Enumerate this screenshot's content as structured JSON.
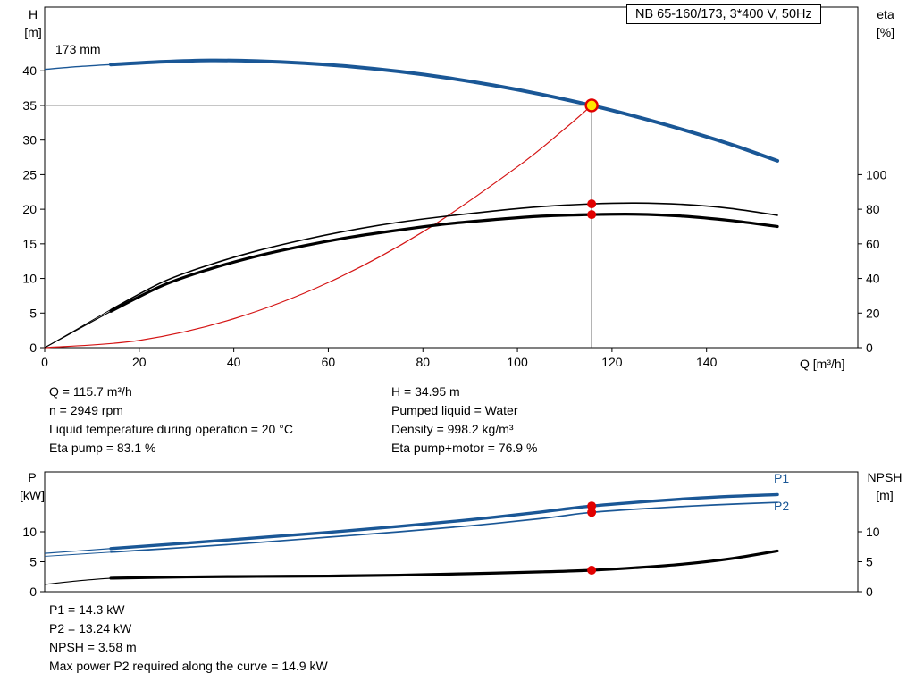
{
  "header": {
    "title_box": "NB 65-160/173, 3*400 V, 50Hz"
  },
  "top_chart": {
    "impeller_label": "173 mm",
    "left_axis_title": [
      "H",
      "[m]"
    ],
    "right_axis_title": [
      "eta",
      "[%]"
    ],
    "x_axis_title": "Q [m³/h]"
  },
  "bottom_chart": {
    "left_axis_title": [
      "P",
      "[kW]"
    ],
    "right_axis_title": [
      "NPSH",
      "[m]"
    ],
    "p1_label": "P1",
    "p2_label": "P2"
  },
  "results": {
    "left": [
      "Q = 115.7 m³/h",
      "n = 2949 rpm",
      "Liquid temperature during operation = 20 °C",
      "Eta pump = 83.1 %"
    ],
    "right": [
      "H = 34.95 m",
      "Pumped liquid = Water",
      "Density = 998.2 kg/m³",
      "Eta pump+motor = 76.9 %"
    ],
    "bottom": [
      "P1 = 14.3 kW",
      "P2 = 13.24 kW",
      "NPSH = 3.58 m",
      "Max power P2 required along the curve = 14.9 kW"
    ]
  },
  "colors": {
    "curve_blue": "#1a5796",
    "curve_red": "#d41414",
    "curve_black": "#000000",
    "duty_fill": "#ffe600",
    "duty_ring": "#e10000",
    "ref_gray": "#8c8c8c",
    "ref_dark": "#333333"
  },
  "chart_data": [
    {
      "type": "line",
      "name": "qh-eta-chart",
      "title": "NB 65-160/173, 3*400 V, 50Hz",
      "xlabel": "Q [m³/h]",
      "ylabel_left": "H [m]",
      "ylabel_right": "eta [%]",
      "x": {
        "min": 0,
        "max": 172,
        "ticks": [
          0,
          20,
          40,
          60,
          80,
          100,
          120,
          140
        ]
      },
      "y_left": {
        "min": 0,
        "max": 49.2,
        "ticks": [
          0,
          5,
          10,
          15,
          20,
          25,
          30,
          35,
          40
        ]
      },
      "y_right": {
        "min": 0,
        "max": 196.8,
        "ticks": [
          0,
          20,
          40,
          60,
          80,
          100
        ]
      },
      "ref_lines": {
        "duty_q": 115.7,
        "duty_h": 35
      },
      "series": [
        {
          "name": "head-curve",
          "axis": "left",
          "color": "blue",
          "width": 4,
          "lead": [
            [
              0,
              40.2
            ],
            [
              7,
              40.6
            ],
            [
              14,
              40.9
            ]
          ],
          "points": [
            [
              14,
              40.9
            ],
            [
              25,
              41.3
            ],
            [
              35,
              41.5
            ],
            [
              45,
              41.4
            ],
            [
              55,
              41.1
            ],
            [
              65,
              40.6
            ],
            [
              75,
              39.9
            ],
            [
              85,
              39.0
            ],
            [
              95,
              37.9
            ],
            [
              105,
              36.6
            ],
            [
              115.7,
              35.0
            ],
            [
              125,
              33.4
            ],
            [
              135,
              31.5
            ],
            [
              145,
              29.4
            ],
            [
              155,
              27.0
            ]
          ]
        },
        {
          "name": "system-curve",
          "axis": "left",
          "color": "red",
          "width": 1.2,
          "points": [
            [
              0,
              0
            ],
            [
              20,
              1.05
            ],
            [
              40,
              4.18
            ],
            [
              60,
              9.41
            ],
            [
              80,
              16.73
            ],
            [
              100,
              26.14
            ],
            [
              110,
              31.63
            ],
            [
              115.7,
              35.0
            ]
          ]
        },
        {
          "name": "eta-pump-curve",
          "axis": "right",
          "color": "black",
          "width": 1.6,
          "lead": [
            [
              0,
              0
            ],
            [
              7,
              11
            ],
            [
              14,
              22
            ]
          ],
          "points": [
            [
              14,
              22
            ],
            [
              25,
              38
            ],
            [
              35,
              48
            ],
            [
              45,
              56
            ],
            [
              55,
              62.5
            ],
            [
              65,
              68
            ],
            [
              75,
              72.5
            ],
            [
              85,
              76
            ],
            [
              95,
              79
            ],
            [
              105,
              81.5
            ],
            [
              115.7,
              83.1
            ],
            [
              125,
              83.6
            ],
            [
              135,
              82.8
            ],
            [
              145,
              80.5
            ],
            [
              155,
              76.5
            ]
          ]
        },
        {
          "name": "eta-pump-motor-curve",
          "axis": "right",
          "color": "black",
          "width": 3.2,
          "lead": [
            [
              0,
              0
            ],
            [
              7,
              10.5
            ],
            [
              14,
              21
            ]
          ],
          "points": [
            [
              14,
              21
            ],
            [
              25,
              36
            ],
            [
              35,
              45.5
            ],
            [
              45,
              53
            ],
            [
              55,
              59
            ],
            [
              65,
              64
            ],
            [
              75,
              68
            ],
            [
              85,
              71.5
            ],
            [
              95,
              74
            ],
            [
              105,
              76
            ],
            [
              115.7,
              76.9
            ],
            [
              125,
              77.1
            ],
            [
              135,
              76
            ],
            [
              145,
              73.5
            ],
            [
              155,
              70
            ]
          ]
        }
      ],
      "markers": [
        {
          "type": "duty",
          "q": 115.7,
          "v": 35,
          "axis": "left"
        },
        {
          "type": "dot",
          "q": 115.7,
          "v": 83.1,
          "axis": "right"
        },
        {
          "type": "dot",
          "q": 115.7,
          "v": 76.9,
          "axis": "right"
        }
      ]
    },
    {
      "type": "line",
      "name": "power-npsh-chart",
      "xlabel": "",
      "ylabel_left": "P [kW]",
      "ylabel_right": "NPSH [m]",
      "x": {
        "min": 0,
        "max": 172,
        "ticks": []
      },
      "y_left": {
        "min": 0,
        "max": 20,
        "ticks": [
          0,
          5,
          10
        ]
      },
      "y_right": {
        "min": 0,
        "max": 20,
        "ticks": [
          0,
          5,
          10
        ]
      },
      "series": [
        {
          "name": "p1-curve",
          "axis": "left",
          "color": "blue",
          "width": 3.4,
          "lead": [
            [
              0,
              6.4
            ],
            [
              7,
              6.8
            ],
            [
              14,
              7.2
            ]
          ],
          "points": [
            [
              14,
              7.2
            ],
            [
              30,
              8.1
            ],
            [
              45,
              9.0
            ],
            [
              60,
              9.9
            ],
            [
              75,
              10.9
            ],
            [
              90,
              12.0
            ],
            [
              105,
              13.3
            ],
            [
              115.7,
              14.3
            ],
            [
              130,
              15.2
            ],
            [
              142,
              15.8
            ],
            [
              155,
              16.2
            ]
          ]
        },
        {
          "name": "p2-curve",
          "axis": "left",
          "color": "blue",
          "width": 1.7,
          "lead": [
            [
              0,
              5.9
            ],
            [
              7,
              6.25
            ],
            [
              14,
              6.6
            ]
          ],
          "points": [
            [
              14,
              6.6
            ],
            [
              30,
              7.4
            ],
            [
              45,
              8.2
            ],
            [
              60,
              9.1
            ],
            [
              75,
              10.0
            ],
            [
              90,
              11.0
            ],
            [
              105,
              12.2
            ],
            [
              115.7,
              13.24
            ],
            [
              130,
              14.0
            ],
            [
              142,
              14.5
            ],
            [
              155,
              14.9
            ]
          ]
        },
        {
          "name": "npsh-curve",
          "axis": "right",
          "color": "black",
          "width": 3.2,
          "lead": [
            [
              0,
              1.2
            ],
            [
              7,
              1.8
            ],
            [
              14,
              2.25
            ]
          ],
          "points": [
            [
              14,
              2.25
            ],
            [
              30,
              2.45
            ],
            [
              45,
              2.55
            ],
            [
              60,
              2.6
            ],
            [
              75,
              2.75
            ],
            [
              90,
              3.0
            ],
            [
              105,
              3.3
            ],
            [
              115.7,
              3.58
            ],
            [
              125,
              4.0
            ],
            [
              135,
              4.6
            ],
            [
              145,
              5.5
            ],
            [
              155,
              6.8
            ]
          ]
        }
      ],
      "markers": [
        {
          "type": "dot",
          "q": 115.7,
          "v": 14.3,
          "axis": "left"
        },
        {
          "type": "dot",
          "q": 115.7,
          "v": 13.24,
          "axis": "left"
        },
        {
          "type": "dot",
          "q": 115.7,
          "v": 3.58,
          "axis": "right"
        }
      ]
    }
  ]
}
